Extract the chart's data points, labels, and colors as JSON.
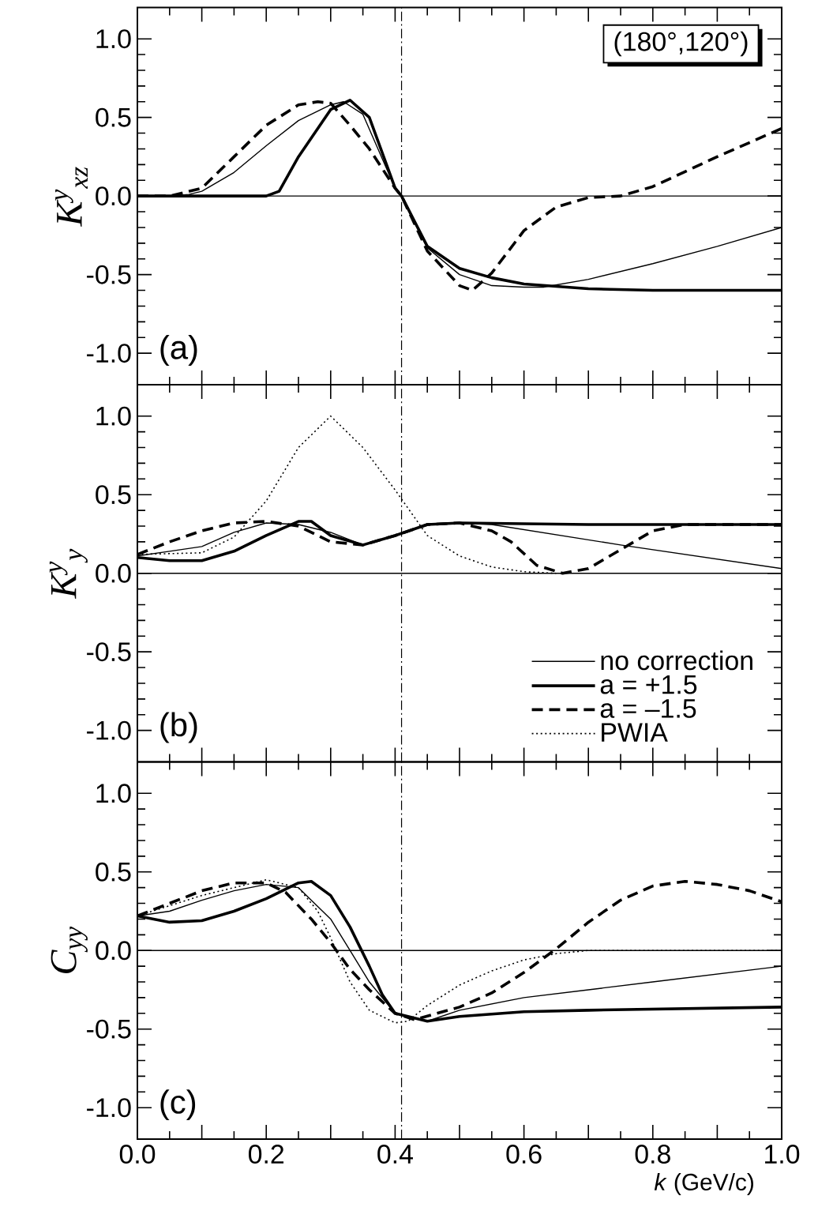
{
  "chart_data": [
    {
      "type": "line",
      "ylabel": "K$^{y}$$_{xz}$",
      "xlim": [
        0,
        1
      ],
      "ylim": [
        -1.2,
        1.2
      ],
      "xticks": [
        {
          "value": 0,
          "label": null
        },
        {
          "value": 0.1,
          "label": null
        },
        {
          "value": 0.2,
          "label": null
        },
        {
          "value": 0.3,
          "label": null
        },
        {
          "value": 0.4,
          "label": null
        },
        {
          "value": 0.5,
          "label": null
        },
        {
          "value": 0.6,
          "label": null
        },
        {
          "value": 0.7,
          "label": null
        },
        {
          "value": 0.8,
          "label": null
        },
        {
          "value": 0.9,
          "label": null
        },
        {
          "value": 1,
          "label": null
        }
      ],
      "yticks": [
        {
          "value": 1,
          "label": "1.0"
        },
        {
          "value": 0.5,
          "label": "0.5"
        },
        {
          "value": 0,
          "label": "0.0"
        },
        {
          "value": -0.5,
          "label": "-0.5"
        },
        {
          "value": -1,
          "label": "-1.0"
        }
      ],
      "tick_labels": "y",
      "annotations": [
        "(180°,120°)",
        "(a)"
      ],
      "ref_lines": [
        {
          "axis": "x",
          "value": 0.41,
          "line_style": "dashdot",
          "color": "#000000"
        },
        {
          "axis": "y",
          "value": 0,
          "line_style": "solid",
          "color": "#000000"
        }
      ],
      "series": [
        {
          "color": "#000000",
          "line_style": "solid",
          "x": [
            0,
            0.05,
            0.08,
            0.1,
            0.15,
            0.2,
            0.25,
            0.3,
            0.32,
            0.35,
            0.4,
            0.41,
            0.45,
            0.5,
            0.55,
            0.6,
            0.63,
            0.7,
            0.8,
            0.9,
            1.0
          ],
          "values": [
            0,
            0,
            0.01,
            0.03,
            0.15,
            0.32,
            0.48,
            0.58,
            0.6,
            0.52,
            0.05,
            0,
            -0.33,
            -0.5,
            -0.57,
            -0.58,
            -0.58,
            -0.53,
            -0.43,
            -0.32,
            -0.2
          ]
        },
        {
          "color": "#000000",
          "line_style": "solid",
          "x": [
            0,
            0.1,
            0.2,
            0.22,
            0.25,
            0.3,
            0.33,
            0.36,
            0.4,
            0.41,
            0.45,
            0.5,
            0.55,
            0.6,
            0.7,
            0.8,
            1.0
          ],
          "values": [
            0,
            0,
            0,
            0.03,
            0.25,
            0.55,
            0.61,
            0.5,
            0.05,
            0,
            -0.32,
            -0.46,
            -0.52,
            -0.56,
            -0.59,
            -0.6,
            -0.6
          ]
        },
        {
          "color": "#000000",
          "line_style": "dashed",
          "x": [
            0,
            0.05,
            0.1,
            0.15,
            0.2,
            0.25,
            0.28,
            0.3,
            0.33,
            0.36,
            0.4,
            0.41,
            0.45,
            0.5,
            0.52,
            0.55,
            0.6,
            0.65,
            0.7,
            0.75,
            0.8,
            0.9,
            1.0
          ],
          "values": [
            0,
            0,
            0.05,
            0.25,
            0.45,
            0.58,
            0.6,
            0.59,
            0.45,
            0.3,
            0.05,
            0,
            -0.35,
            -0.57,
            -0.6,
            -0.49,
            -0.22,
            -0.07,
            -0.01,
            0,
            0.06,
            0.25,
            0.43
          ]
        }
      ]
    },
    {
      "type": "line",
      "ylabel": "K$^{y}$$_{y}$",
      "xlim": [
        0,
        1
      ],
      "ylim": [
        -1.2,
        1.2
      ],
      "xticks": [
        {
          "value": 0,
          "label": null
        },
        {
          "value": 0.1,
          "label": null
        },
        {
          "value": 0.2,
          "label": null
        },
        {
          "value": 0.3,
          "label": null
        },
        {
          "value": 0.4,
          "label": null
        },
        {
          "value": 0.5,
          "label": null
        },
        {
          "value": 0.6,
          "label": null
        },
        {
          "value": 0.7,
          "label": null
        },
        {
          "value": 0.8,
          "label": null
        },
        {
          "value": 0.9,
          "label": null
        },
        {
          "value": 1,
          "label": null
        }
      ],
      "yticks": [
        {
          "value": 1,
          "label": "1.0"
        },
        {
          "value": 0.5,
          "label": "0.5"
        },
        {
          "value": 0,
          "label": "0.0"
        },
        {
          "value": -0.5,
          "label": "-0.5"
        },
        {
          "value": -1,
          "label": "-1.0"
        }
      ],
      "tick_labels": "y",
      "annotations": [
        "(b)"
      ],
      "legend": "bottom right",
      "ref_lines": [
        {
          "axis": "x",
          "value": 0.41,
          "line_style": "dashdot",
          "color": "#000000"
        },
        {
          "axis": "y",
          "value": 0,
          "line_style": "solid",
          "color": "#000000"
        }
      ],
      "series": [
        {
          "name": "no correction",
          "color": "#000000",
          "line_style": "solid",
          "x": [
            0,
            0.05,
            0.1,
            0.15,
            0.2,
            0.25,
            0.3,
            0.35,
            0.4,
            0.45,
            0.5,
            0.55,
            0.75,
            1.0
          ],
          "values": [
            0.11,
            0.14,
            0.17,
            0.26,
            0.32,
            0.31,
            0.26,
            0.18,
            0.24,
            0.31,
            0.32,
            0.31,
            0.18,
            0.03
          ]
        },
        {
          "name": "a = +1.5",
          "color": "#000000",
          "line_style": "solid",
          "x": [
            0,
            0.05,
            0.1,
            0.15,
            0.2,
            0.25,
            0.27,
            0.3,
            0.35,
            0.4,
            0.45,
            0.5,
            0.7,
            1.0
          ],
          "values": [
            0.1,
            0.08,
            0.08,
            0.14,
            0.24,
            0.33,
            0.33,
            0.24,
            0.18,
            0.24,
            0.31,
            0.32,
            0.31,
            0.31
          ]
        },
        {
          "name": "a = –1.5",
          "color": "#000000",
          "line_style": "dashed",
          "x": [
            0,
            0.05,
            0.1,
            0.15,
            0.2,
            0.25,
            0.3,
            0.35,
            0.4,
            0.45,
            0.5,
            0.55,
            0.58,
            0.62,
            0.66,
            0.7,
            0.75,
            0.8,
            0.85,
            1.0
          ],
          "values": [
            0.12,
            0.2,
            0.27,
            0.32,
            0.33,
            0.3,
            0.2,
            0.18,
            0.24,
            0.31,
            0.32,
            0.27,
            0.2,
            0.05,
            0,
            0.03,
            0.15,
            0.27,
            0.31,
            0.31
          ]
        },
        {
          "name": "PWIA",
          "color": "#000000",
          "line_style": "dotted",
          "x": [
            0,
            0.1,
            0.15,
            0.2,
            0.25,
            0.3,
            0.35,
            0.4,
            0.45,
            0.5,
            0.55,
            0.6,
            0.65
          ],
          "values": [
            0.12,
            0.13,
            0.23,
            0.46,
            0.8,
            1.0,
            0.8,
            0.53,
            0.24,
            0.11,
            0.04,
            0.01,
            0
          ]
        }
      ]
    },
    {
      "type": "line",
      "ylabel": "C$_{yy}$",
      "xlabel": "*k* (GeV/c)",
      "xlim": [
        0,
        1
      ],
      "ylim": [
        -1.2,
        1.2
      ],
      "xticks": [
        {
          "value": 0,
          "label": "0.0"
        },
        {
          "value": 0.1,
          "label": null
        },
        {
          "value": 0.2,
          "label": "0.2"
        },
        {
          "value": 0.3,
          "label": null
        },
        {
          "value": 0.4,
          "label": "0.4"
        },
        {
          "value": 0.5,
          "label": null
        },
        {
          "value": 0.6,
          "label": "0.6"
        },
        {
          "value": 0.7,
          "label": null
        },
        {
          "value": 0.8,
          "label": "0.8"
        },
        {
          "value": 0.9,
          "label": null
        },
        {
          "value": 1,
          "label": "1.0"
        }
      ],
      "yticks": [
        {
          "value": 1,
          "label": "1.0"
        },
        {
          "value": 0.5,
          "label": "0.5"
        },
        {
          "value": 0,
          "label": "0.0"
        },
        {
          "value": -0.5,
          "label": "-0.5"
        },
        {
          "value": -1,
          "label": "-1.0"
        }
      ],
      "annotations": [
        "(c)"
      ],
      "ref_lines": [
        {
          "axis": "x",
          "value": 0.41,
          "line_style": "dashdot",
          "color": "#000000"
        },
        {
          "axis": "y",
          "value": 0,
          "line_style": "solid",
          "color": "#000000"
        }
      ],
      "series": [
        {
          "color": "#000000",
          "line_style": "solid",
          "x": [
            0,
            0.05,
            0.1,
            0.15,
            0.2,
            0.25,
            0.3,
            0.33,
            0.36,
            0.4,
            0.45,
            0.5,
            0.6,
            0.7,
            0.8,
            1.0
          ],
          "values": [
            0.22,
            0.25,
            0.32,
            0.38,
            0.42,
            0.4,
            0.2,
            0,
            -0.2,
            -0.4,
            -0.45,
            -0.38,
            -0.3,
            -0.25,
            -0.2,
            -0.1
          ]
        },
        {
          "color": "#000000",
          "line_style": "solid",
          "x": [
            0,
            0.05,
            0.1,
            0.15,
            0.2,
            0.25,
            0.27,
            0.3,
            0.33,
            0.36,
            0.38,
            0.4,
            0.45,
            0.5,
            0.6,
            0.7,
            1.0
          ],
          "values": [
            0.22,
            0.18,
            0.19,
            0.25,
            0.33,
            0.43,
            0.44,
            0.35,
            0.15,
            -0.1,
            -0.28,
            -0.4,
            -0.45,
            -0.42,
            -0.39,
            -0.38,
            -0.36
          ]
        },
        {
          "color": "#000000",
          "line_style": "dashed",
          "x": [
            0,
            0.05,
            0.1,
            0.15,
            0.2,
            0.23,
            0.27,
            0.3,
            0.33,
            0.36,
            0.4,
            0.43,
            0.5,
            0.55,
            0.6,
            0.65,
            0.7,
            0.75,
            0.8,
            0.85,
            0.9,
            0.95,
            1.0
          ],
          "values": [
            0.22,
            0.3,
            0.38,
            0.43,
            0.43,
            0.37,
            0.2,
            0.05,
            -0.12,
            -0.25,
            -0.4,
            -0.44,
            -0.36,
            -0.27,
            -0.14,
            0.01,
            0.18,
            0.32,
            0.41,
            0.44,
            0.42,
            0.38,
            0.31
          ]
        },
        {
          "color": "#000000",
          "line_style": "dotted",
          "x": [
            0,
            0.1,
            0.2,
            0.25,
            0.28,
            0.3,
            0.33,
            0.36,
            0.4,
            0.42,
            0.45,
            0.5,
            0.55,
            0.6,
            0.65,
            0.7,
            1.0
          ],
          "values": [
            0.22,
            0.35,
            0.45,
            0.4,
            0.25,
            0.08,
            -0.2,
            -0.38,
            -0.46,
            -0.45,
            -0.35,
            -0.22,
            -0.13,
            -0.06,
            -0.02,
            0,
            0
          ]
        }
      ]
    }
  ]
}
